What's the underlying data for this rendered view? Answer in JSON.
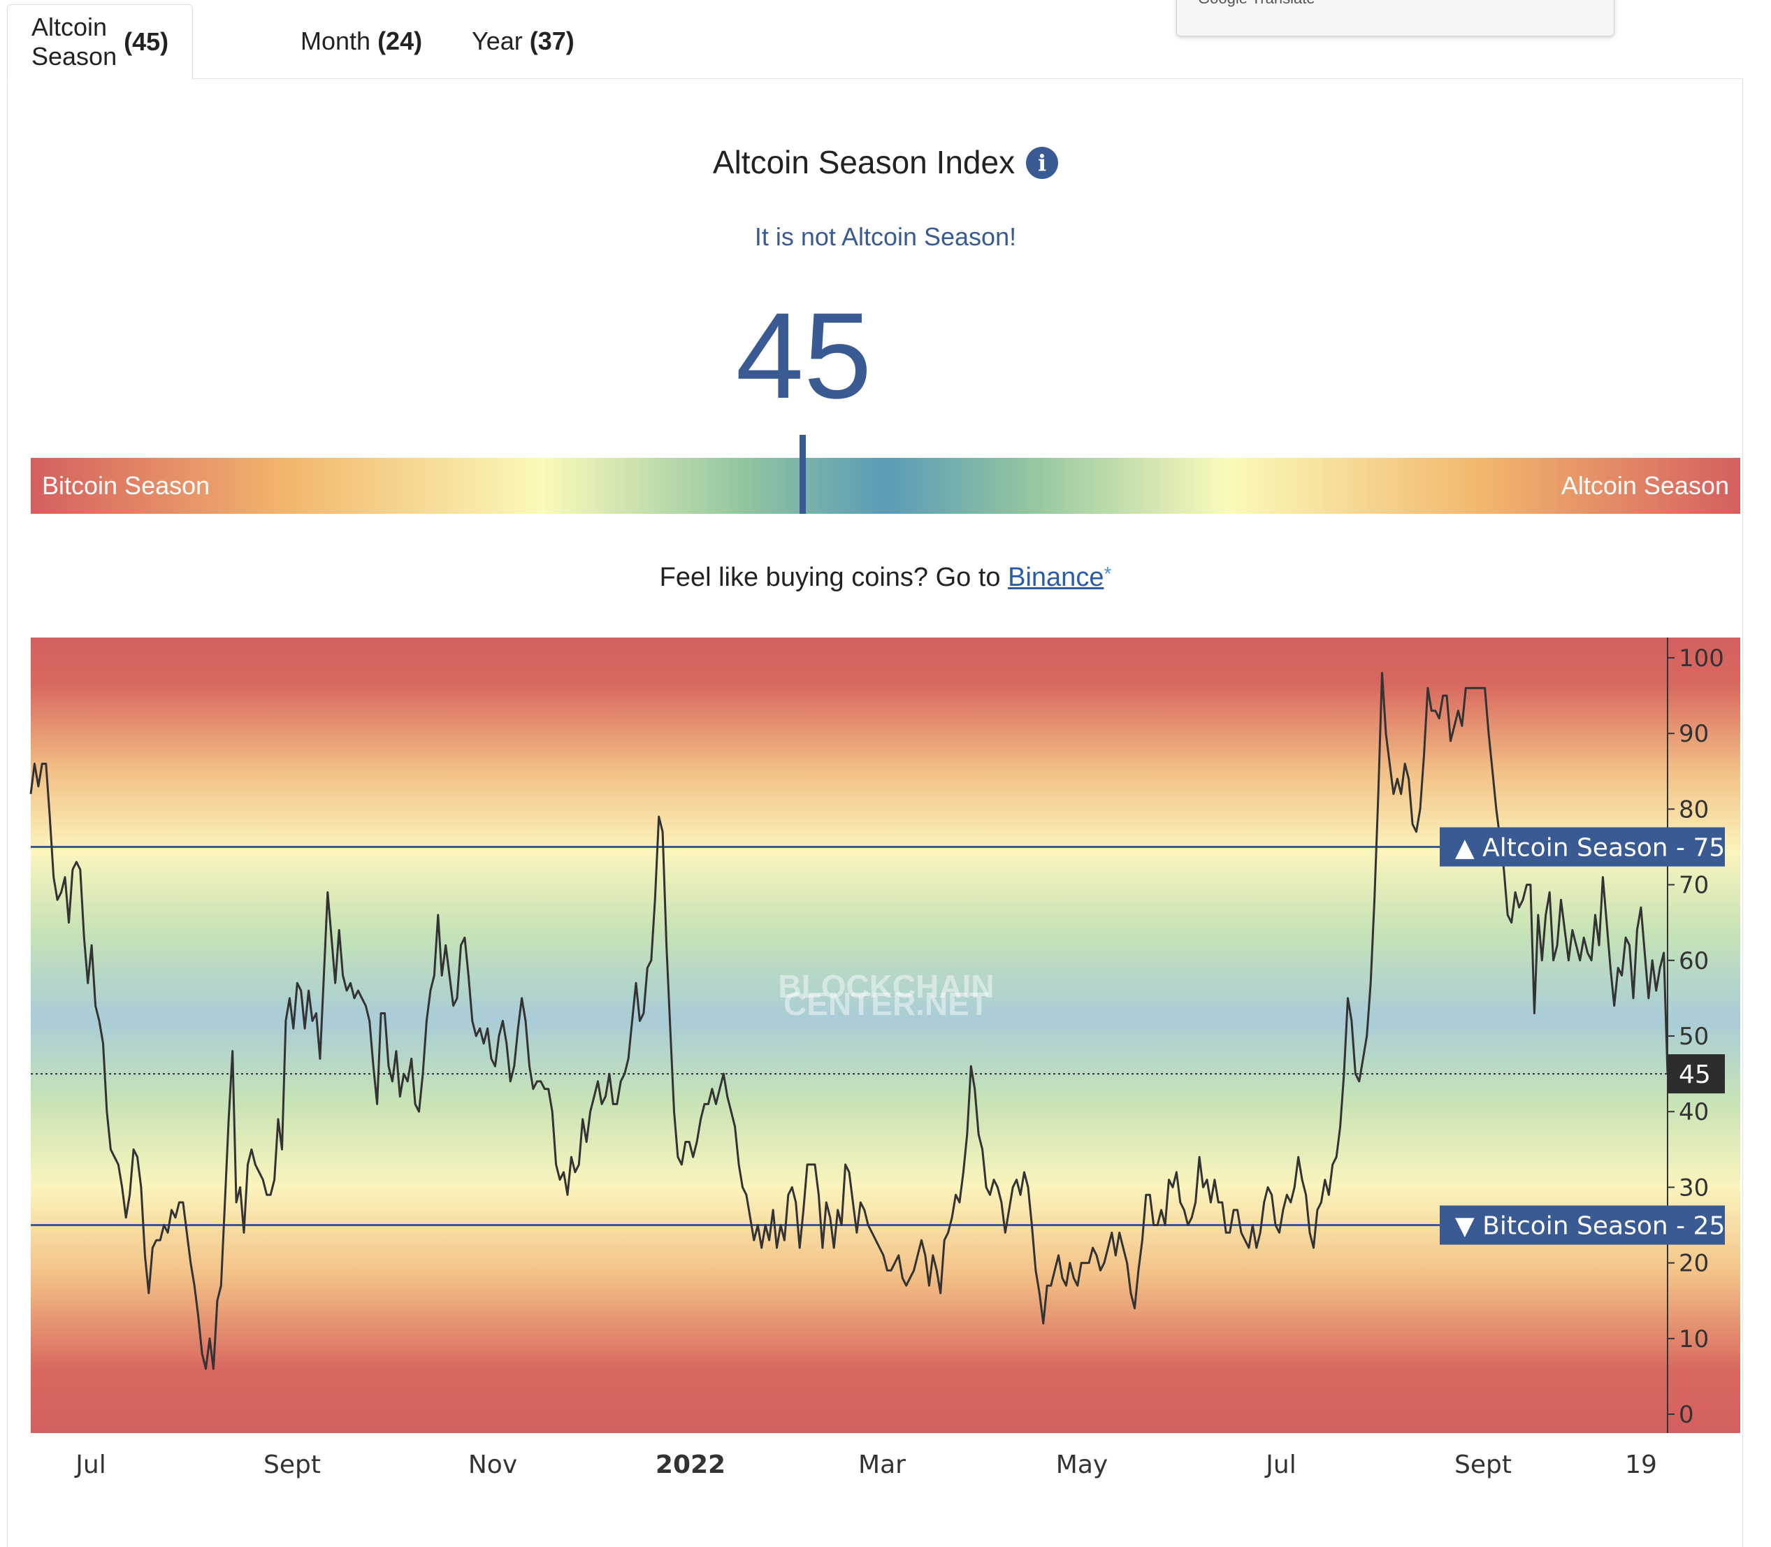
{
  "translate_popup": {
    "label": "Google Translate"
  },
  "tabs": [
    {
      "label": "Altcoin Season",
      "value": "(45)",
      "active": true
    },
    {
      "label": "Month",
      "value": "(24)",
      "active": false
    },
    {
      "label": "Year",
      "value": "(37)",
      "active": false
    }
  ],
  "header": {
    "title": "Altcoin Season Index",
    "info_icon": "i",
    "status": "It is not Altcoin Season!",
    "index_value": "45"
  },
  "gauge": {
    "left_label": "Bitcoin Season",
    "right_label": "Altcoin Season",
    "value": 45
  },
  "promo": {
    "text": "Feel like buying coins? Go to",
    "link": "Binance",
    "star": "*"
  },
  "colors": {
    "accent": "#3a5a93",
    "season_red": "#d45f5f",
    "line": "#333333"
  },
  "chart_data": {
    "type": "line",
    "watermark": [
      "BLOCKCHAIN",
      "CENTER.NET"
    ],
    "ylim": [
      0,
      100
    ],
    "yticks": [
      0,
      10,
      20,
      30,
      40,
      50,
      60,
      70,
      80,
      90,
      100
    ],
    "xlabels": [
      "Jul",
      "Sept",
      "Nov",
      "2022",
      "Mar",
      "May",
      "Jul",
      "Sept",
      "19"
    ],
    "thresholds": [
      {
        "label": "Altcoin Season",
        "value": 75,
        "arrow": "▲"
      },
      {
        "label": "Bitcoin Season",
        "value": 25,
        "arrow": "▼"
      }
    ],
    "current": 45,
    "series": [
      {
        "values": [
          82,
          86,
          83,
          86,
          86,
          79,
          71,
          68,
          69,
          71,
          65,
          72,
          73,
          72,
          63,
          57,
          62,
          54,
          52,
          49,
          40,
          35,
          34,
          33,
          30,
          26,
          29,
          35,
          34,
          30,
          21,
          16,
          22,
          23,
          23,
          25,
          24,
          27,
          26,
          28,
          28,
          24,
          20,
          17,
          13,
          8,
          6,
          10,
          6,
          15,
          17,
          28,
          39,
          48,
          28,
          30,
          24,
          33,
          35,
          33,
          32,
          31,
          29,
          29,
          31,
          39,
          35,
          52,
          55,
          51,
          57,
          56,
          51,
          56,
          52,
          53,
          47,
          58,
          69,
          63,
          57,
          64,
          58,
          56,
          57,
          55,
          56,
          55,
          54,
          52,
          46,
          41,
          53,
          53,
          46,
          44,
          48,
          42,
          45,
          44,
          47,
          41,
          40,
          45,
          52,
          56,
          58,
          66,
          58,
          62,
          58,
          54,
          55,
          62,
          63,
          58,
          52,
          50,
          51,
          49,
          51,
          47,
          46,
          50,
          52,
          49,
          44,
          46,
          51,
          55,
          52,
          46,
          43,
          44,
          44,
          43,
          43,
          40,
          33,
          31,
          32,
          29,
          34,
          32,
          33,
          39,
          36,
          40,
          42,
          44,
          41,
          42,
          45,
          41,
          41,
          44,
          45,
          47,
          52,
          57,
          52,
          53,
          59,
          60,
          68,
          79,
          77,
          62,
          51,
          40,
          34,
          33,
          36,
          36,
          34,
          36,
          39,
          41,
          41,
          43,
          41,
          43,
          45,
          42,
          40,
          38,
          33,
          30,
          29,
          26,
          23,
          25,
          22,
          25,
          23,
          27,
          22,
          25,
          23,
          29,
          30,
          28,
          22,
          27,
          33,
          33,
          33,
          29,
          22,
          28,
          26,
          22,
          27,
          25,
          33,
          32,
          28,
          24,
          28,
          27,
          25,
          24,
          23,
          22,
          21,
          19,
          19,
          20,
          21,
          18,
          17,
          18,
          19,
          21,
          23,
          21,
          17,
          21,
          19,
          16,
          23,
          24,
          26,
          29,
          28,
          32,
          37,
          46,
          43,
          37,
          35,
          30,
          29,
          31,
          30,
          28,
          24,
          27,
          30,
          31,
          29,
          32,
          30,
          25,
          19,
          16,
          12,
          17,
          17,
          19,
          21,
          18,
          17,
          20,
          18,
          17,
          20,
          20,
          20,
          22,
          21,
          19,
          20,
          22,
          24,
          21,
          24,
          22,
          20,
          16,
          14,
          19,
          23,
          29,
          29,
          25,
          25,
          27,
          25,
          31,
          30,
          32,
          28,
          27,
          25,
          26,
          28,
          34,
          30,
          31,
          28,
          31,
          28,
          28,
          24,
          24,
          27,
          27,
          24,
          23,
          22,
          25,
          22,
          24,
          28,
          30,
          29,
          25,
          24,
          27,
          29,
          28,
          30,
          34,
          31,
          29,
          24,
          22,
          27,
          28,
          31,
          29,
          33,
          34,
          38,
          45,
          55,
          52,
          45,
          44,
          47,
          50,
          57,
          68,
          82,
          98,
          90,
          86,
          82,
          84,
          82,
          86,
          84,
          78,
          77,
          80,
          87,
          96,
          93,
          93,
          92,
          95,
          95,
          89,
          91,
          93,
          91,
          96,
          96,
          96,
          96,
          96,
          96,
          90,
          85,
          80,
          76,
          72,
          66,
          65,
          69,
          67,
          68,
          70,
          70,
          53,
          66,
          60,
          66,
          69,
          60,
          62,
          68,
          64,
          60,
          64,
          62,
          60,
          63,
          61,
          60,
          66,
          62,
          71,
          65,
          59,
          54,
          59,
          58,
          63,
          62,
          55,
          64,
          67,
          61,
          55,
          60,
          56,
          59,
          61,
          45
        ]
      }
    ]
  }
}
